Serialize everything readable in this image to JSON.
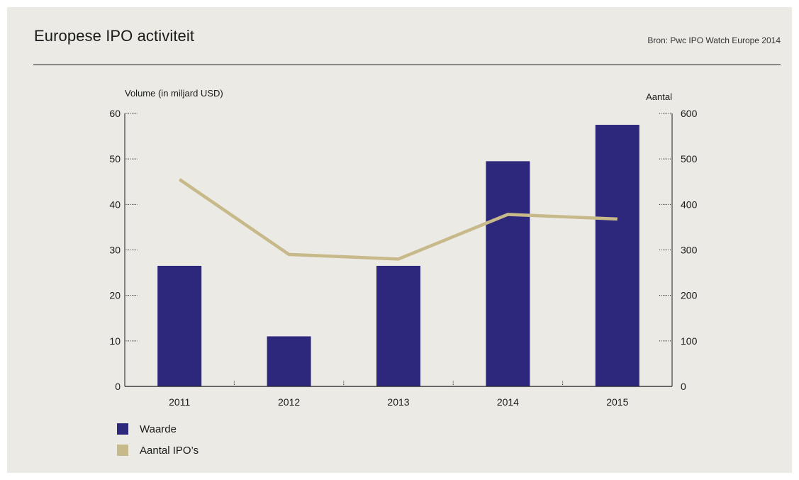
{
  "header": {
    "title": "Europese IPO activiteit",
    "source": "Bron: Pwc IPO Watch Europe 2014"
  },
  "colors": {
    "background": "#ebeae5",
    "bar": "#2d287c",
    "line": "#c8b98a",
    "axis": "#1a1a1a"
  },
  "chart_data": {
    "type": "bar",
    "categories": [
      "2011",
      "2012",
      "2013",
      "2014",
      "2015"
    ],
    "series": [
      {
        "name": "Waarde",
        "type": "bar",
        "axis": "left",
        "values": [
          26.5,
          11,
          26.5,
          49.5,
          57.5
        ]
      },
      {
        "name": "Aantal IPO’s",
        "type": "line",
        "axis": "right",
        "values": [
          455,
          290,
          280,
          378,
          368
        ]
      }
    ],
    "ylabel": "Volume (in miljard USD)",
    "y2label": "Aantal",
    "ylim": [
      0,
      60
    ],
    "y2lim": [
      0,
      600
    ],
    "yticks": [
      "0",
      "10",
      "20",
      "30",
      "40",
      "50",
      "60"
    ],
    "y2ticks": [
      "0",
      "100",
      "200",
      "300",
      "400",
      "500",
      "600"
    ],
    "grid": false,
    "legend_position": "bottom-left"
  },
  "legend": {
    "items": [
      {
        "label": "Waarde",
        "color": "#2d287c"
      },
      {
        "label": "Aantal IPO’s",
        "color": "#c8b98a"
      }
    ]
  }
}
